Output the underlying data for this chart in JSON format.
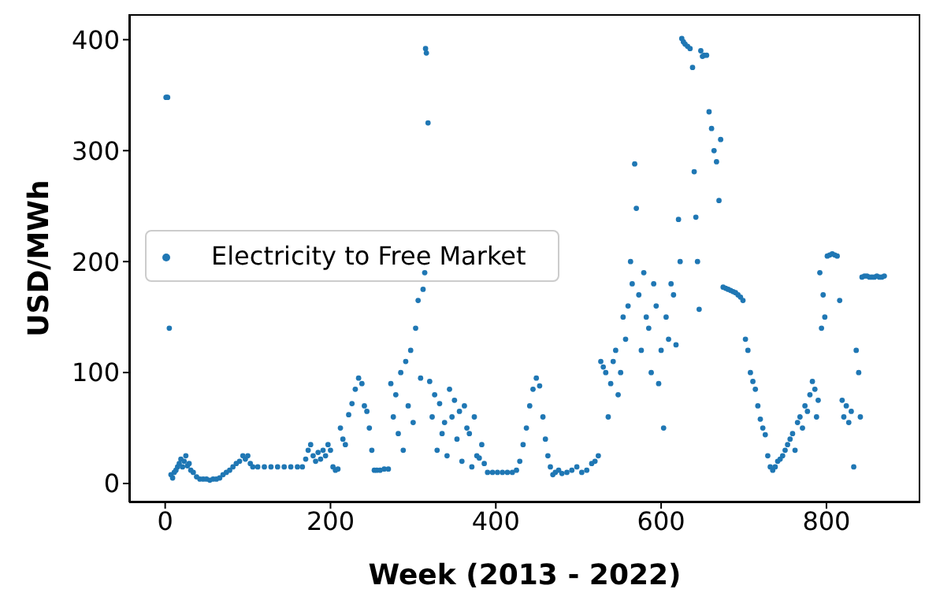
{
  "chart_data": {
    "type": "scatter",
    "xlabel": "Week (2013 - 2022)",
    "ylabel": "USD/MWh",
    "xlim": [
      -43.5,
      913.5
    ],
    "xticks": [
      0,
      200,
      400,
      600,
      800
    ],
    "ylim": [
      -17,
      423
    ],
    "yticks": [
      0,
      100,
      200,
      300,
      400
    ],
    "grid": false,
    "legend": "center left",
    "marker": "circle",
    "series": [
      {
        "name": "Electricity to Free Market",
        "color": "#1f77b4",
        "x": [
          1,
          2,
          3,
          5,
          7,
          9,
          11,
          13,
          15,
          17,
          19,
          21,
          23,
          25,
          27,
          29,
          31,
          34,
          38,
          42,
          46,
          50,
          54,
          58,
          62,
          66,
          70,
          74,
          78,
          82,
          86,
          90,
          94,
          97,
          100,
          103,
          106,
          112,
          120,
          128,
          136,
          144,
          152,
          160,
          166,
          170,
          173,
          176,
          179,
          182,
          185,
          188,
          191,
          194,
          197,
          200,
          203,
          206,
          209,
          212,
          215,
          218,
          222,
          226,
          230,
          234,
          238,
          241,
          244,
          247,
          250,
          253,
          256,
          260,
          265,
          270,
          273,
          276,
          279,
          282,
          285,
          288,
          291,
          294,
          297,
          300,
          303,
          306,
          309,
          312,
          314,
          315,
          316,
          318,
          320,
          323,
          326,
          329,
          332,
          335,
          338,
          341,
          344,
          347,
          350,
          353,
          356,
          359,
          362,
          365,
          368,
          371,
          374,
          377,
          380,
          383,
          386,
          390,
          396,
          402,
          408,
          414,
          420,
          425,
          429,
          433,
          437,
          441,
          445,
          449,
          453,
          457,
          460,
          463,
          466,
          469,
          472,
          476,
          480,
          486,
          492,
          498,
          504,
          510,
          516,
          520,
          524,
          527,
          530,
          533,
          536,
          539,
          542,
          545,
          548,
          551,
          554,
          557,
          560,
          563,
          565,
          568,
          570,
          573,
          576,
          579,
          582,
          585,
          588,
          591,
          594,
          597,
          600,
          603,
          606,
          609,
          612,
          615,
          618,
          621,
          623,
          625,
          627,
          629,
          632,
          635,
          638,
          640,
          642,
          644,
          646,
          648,
          650,
          652,
          655,
          658,
          661,
          664,
          667,
          670,
          672,
          675,
          678,
          681,
          684,
          687,
          690,
          693,
          696,
          699,
          702,
          705,
          708,
          711,
          714,
          717,
          720,
          723,
          726,
          729,
          732,
          735,
          738,
          741,
          744,
          747,
          750,
          753,
          756,
          759,
          762,
          765,
          768,
          771,
          774,
          777,
          780,
          783,
          786,
          788,
          790,
          792,
          794,
          796,
          798,
          801,
          804,
          807,
          810,
          813,
          816,
          819,
          821,
          824,
          827,
          830,
          833,
          836,
          839,
          841,
          843,
          846,
          849,
          852,
          855,
          858,
          861,
          864,
          867,
          870
        ],
        "values": [
          348,
          348,
          348,
          140,
          8,
          5,
          10,
          12,
          15,
          18,
          22,
          15,
          20,
          25,
          16,
          18,
          12,
          10,
          6,
          4,
          4,
          4,
          3,
          4,
          4,
          5,
          8,
          10,
          12,
          15,
          18,
          20,
          25,
          22,
          25,
          18,
          15,
          15,
          15,
          15,
          15,
          15,
          15,
          15,
          15,
          22,
          30,
          35,
          25,
          20,
          28,
          22,
          30,
          25,
          35,
          30,
          15,
          12,
          13,
          50,
          40,
          35,
          62,
          72,
          85,
          95,
          90,
          70,
          65,
          50,
          30,
          12,
          12,
          12,
          13,
          13,
          90,
          60,
          80,
          45,
          100,
          30,
          110,
          70,
          120,
          55,
          140,
          165,
          95,
          175,
          190,
          392,
          388,
          325,
          92,
          60,
          80,
          30,
          72,
          45,
          55,
          25,
          85,
          60,
          75,
          40,
          65,
          20,
          70,
          50,
          45,
          15,
          60,
          25,
          23,
          35,
          18,
          10,
          10,
          10,
          10,
          10,
          10,
          12,
          20,
          35,
          50,
          70,
          85,
          95,
          88,
          60,
          40,
          25,
          15,
          8,
          10,
          12,
          9,
          10,
          12,
          15,
          10,
          12,
          18,
          20,
          25,
          110,
          105,
          100,
          60,
          90,
          110,
          120,
          80,
          100,
          150,
          130,
          160,
          200,
          180,
          288,
          248,
          170,
          120,
          190,
          150,
          140,
          100,
          180,
          160,
          90,
          120,
          50,
          150,
          130,
          180,
          170,
          125,
          238,
          200,
          401,
          398,
          396,
          394,
          392,
          375,
          281,
          240,
          200,
          157,
          390,
          385,
          386,
          386,
          335,
          320,
          300,
          290,
          255,
          310,
          177,
          176,
          175,
          174,
          173,
          172,
          170,
          168,
          165,
          130,
          120,
          100,
          92,
          85,
          70,
          58,
          50,
          44,
          25,
          15,
          12,
          15,
          20,
          22,
          25,
          30,
          35,
          40,
          45,
          30,
          55,
          60,
          50,
          70,
          65,
          80,
          92,
          85,
          60,
          75,
          190,
          140,
          170,
          150,
          205,
          206,
          207,
          206,
          205,
          165,
          75,
          60,
          70,
          55,
          65,
          15,
          120,
          100,
          60,
          186,
          187,
          187,
          186,
          186,
          186,
          187,
          186,
          186,
          187
        ]
      }
    ]
  }
}
